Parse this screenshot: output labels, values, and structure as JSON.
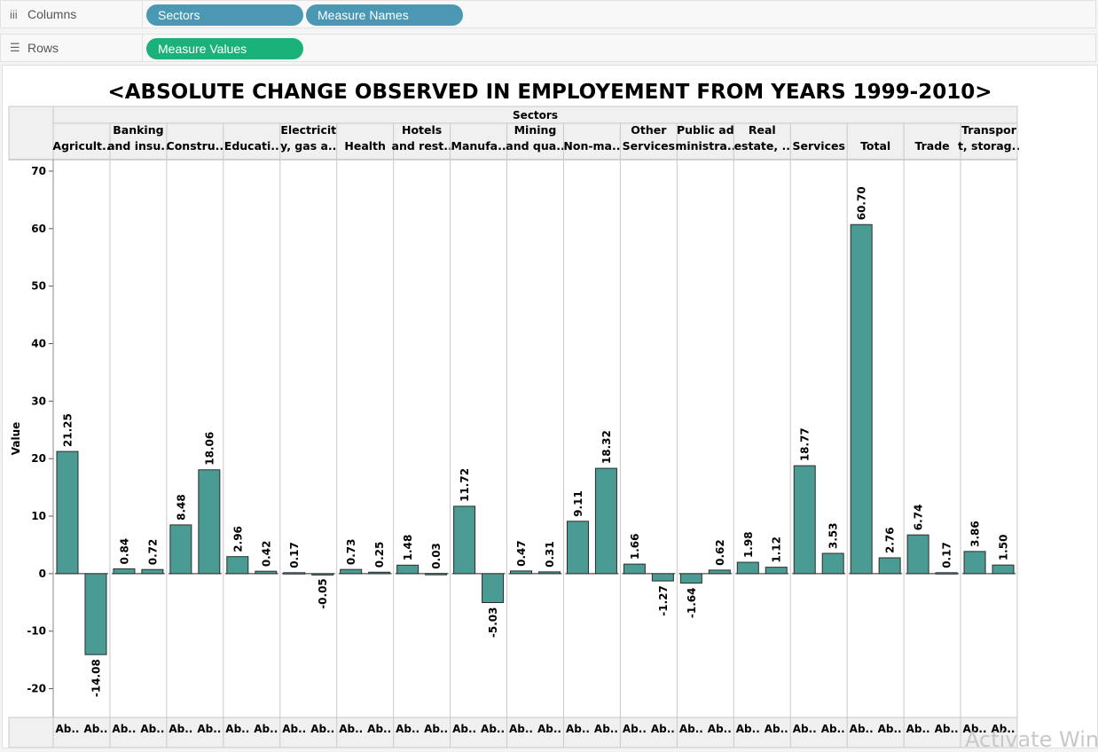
{
  "shelves": {
    "columns": {
      "label": "Columns",
      "icon": "iii",
      "pills": [
        "Sectors",
        "Measure Names"
      ]
    },
    "rows": {
      "label": "Rows",
      "icon": "☰",
      "pills": [
        "Measure Values"
      ]
    }
  },
  "colors": {
    "pill_dimension": "#4a98b3",
    "pill_measure": "#1bb17a",
    "bar": "#4a9b94"
  },
  "watermark": "Activate Wind",
  "chart_data": {
    "type": "bar",
    "title": "<ABSOLUTE CHANGE OBSERVED IN EMPLOYEMENT FROM YEARS 1999-2010>",
    "column_header": "Sectors",
    "ylabel": "Value",
    "ylim": [
      -25,
      72
    ],
    "yticks": [
      70,
      60,
      50,
      40,
      30,
      20,
      10,
      0,
      -10,
      -20
    ],
    "sectors": [
      {
        "label": [
          "Agricult.."
        ],
        "values": [
          21.25,
          -14.08
        ],
        "value_labels": [
          "21.25",
          "-14.08"
        ],
        "sub_labels": [
          "Ab..",
          "Ab.."
        ]
      },
      {
        "label": [
          "Banking",
          "and insu.."
        ],
        "values": [
          0.84,
          0.72
        ],
        "value_labels": [
          "0.84",
          "0.72"
        ],
        "sub_labels": [
          "Ab..",
          "Ab.."
        ]
      },
      {
        "label": [
          "Constru.."
        ],
        "values": [
          8.48,
          18.06
        ],
        "value_labels": [
          "8.48",
          "18.06"
        ],
        "sub_labels": [
          "Ab..",
          "Ab.."
        ]
      },
      {
        "label": [
          "Educati.."
        ],
        "values": [
          2.96,
          0.42
        ],
        "value_labels": [
          "2.96",
          "0.42"
        ],
        "sub_labels": [
          "Ab..",
          "Ab.."
        ]
      },
      {
        "label": [
          "Electricit",
          "y, gas a.."
        ],
        "values": [
          0.17,
          -0.05
        ],
        "value_labels": [
          "0.17",
          "-0.05"
        ],
        "sub_labels": [
          "Ab..",
          "Ab.."
        ]
      },
      {
        "label": [
          "Health"
        ],
        "values": [
          0.73,
          0.25
        ],
        "value_labels": [
          "0.73",
          "0.25"
        ],
        "sub_labels": [
          "Ab..",
          "Ab.."
        ]
      },
      {
        "label": [
          "Hotels",
          "and rest.."
        ],
        "values": [
          1.48,
          0.03
        ],
        "value_labels": [
          "1.48",
          "0.03"
        ],
        "sub_labels": [
          "Ab..",
          "Ab.."
        ]
      },
      {
        "label": [
          "Manufa.."
        ],
        "values": [
          11.72,
          -5.03
        ],
        "value_labels": [
          "11.72",
          "-5.03"
        ],
        "sub_labels": [
          "Ab..",
          "Ab.."
        ]
      },
      {
        "label": [
          "Mining",
          "and qua.."
        ],
        "values": [
          0.47,
          0.31
        ],
        "value_labels": [
          "0.47",
          "0.31"
        ],
        "sub_labels": [
          "Ab..",
          "Ab.."
        ]
      },
      {
        "label": [
          "Non-ma.."
        ],
        "values": [
          9.11,
          18.32
        ],
        "value_labels": [
          "9.11",
          "18.32"
        ],
        "sub_labels": [
          "Ab..",
          "Ab.."
        ]
      },
      {
        "label": [
          "Other",
          "Services"
        ],
        "values": [
          1.66,
          -1.27
        ],
        "value_labels": [
          "1.66",
          "-1.27"
        ],
        "sub_labels": [
          "Ab..",
          "Ab.."
        ]
      },
      {
        "label": [
          "Public ad",
          "ministra.."
        ],
        "values": [
          -1.64,
          0.62
        ],
        "value_labels": [
          "-1.64",
          "0.62"
        ],
        "sub_labels": [
          "Ab..",
          "Ab.."
        ]
      },
      {
        "label": [
          "Real",
          "estate, .."
        ],
        "values": [
          1.98,
          1.12
        ],
        "value_labels": [
          "1.98",
          "1.12"
        ],
        "sub_labels": [
          "Ab..",
          "Ab.."
        ]
      },
      {
        "label": [
          "Services"
        ],
        "values": [
          18.77,
          3.53
        ],
        "value_labels": [
          "18.77",
          "3.53"
        ],
        "sub_labels": [
          "Ab..",
          "Ab.."
        ]
      },
      {
        "label": [
          "Total"
        ],
        "values": [
          60.7,
          2.76
        ],
        "value_labels": [
          "60.70",
          "2.76"
        ],
        "sub_labels": [
          "Ab..",
          "Ab.."
        ]
      },
      {
        "label": [
          "Trade"
        ],
        "values": [
          6.74,
          0.17
        ],
        "value_labels": [
          "6.74",
          "0.17"
        ],
        "sub_labels": [
          "Ab..",
          "Ab.."
        ]
      },
      {
        "label": [
          "Transpor",
          "t, storag.."
        ],
        "values": [
          3.86,
          1.5
        ],
        "value_labels": [
          "3.86",
          "1.50"
        ],
        "sub_labels": [
          "Ab..",
          "Ab.."
        ]
      }
    ]
  }
}
